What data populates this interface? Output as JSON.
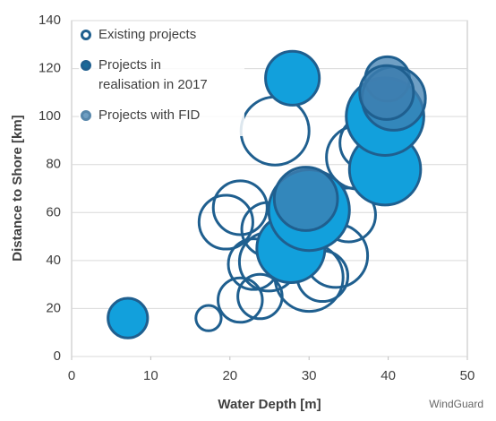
{
  "chart_data": {
    "type": "bubble",
    "xlabel": "Water Depth [m]",
    "ylabel": "Distance to Shore [km]",
    "xlim": [
      0,
      50
    ],
    "xticks": [
      0,
      10,
      20,
      30,
      40,
      50
    ],
    "ylim": [
      0,
      140
    ],
    "yticks": [
      0,
      20,
      40,
      60,
      80,
      100,
      120,
      140
    ],
    "grid": true,
    "legend": "upper left",
    "watermark": "WindGuard",
    "series": [
      {
        "name": "Existing projects",
        "color": "#1f5f8f",
        "filled": false,
        "x": [
          17.3,
          21.3,
          19.5,
          21.3,
          25.7,
          23,
          24.9,
          23.8,
          30,
          31.7,
          33.4,
          35,
          36.2,
          37.3,
          24.9
        ],
        "values": [
          16,
          23.5,
          56,
          62,
          94,
          38.5,
          39.5,
          25,
          33,
          33.5,
          42,
          59,
          83,
          89,
          53
        ],
        "sizes": [
          1.6,
          2.8,
          3.4,
          3.4,
          4.3,
          3.2,
          3.7,
          2.8,
          4.3,
          3.2,
          4,
          3.4,
          4,
          3.4,
          3.4
        ]
      },
      {
        "name": "Projects in realisation in 2017",
        "color": "#12a0dc",
        "filled": true,
        "x": [
          7.1,
          27.9,
          27.7,
          30,
          39.6,
          39.6
        ],
        "values": [
          16,
          116,
          45,
          61,
          78,
          100
        ],
        "sizes": [
          2.5,
          3.4,
          4.3,
          5.1,
          4.5,
          4.9
        ]
      },
      {
        "name": "Projects with FID",
        "color": "#3f7fb0",
        "filled": true,
        "x": [
          39.9,
          40.7,
          29.6,
          39.8
        ],
        "values": [
          115.7,
          107.5,
          65.7,
          110
        ],
        "sizes": [
          2.8,
          4,
          4,
          3.4
        ]
      }
    ]
  }
}
